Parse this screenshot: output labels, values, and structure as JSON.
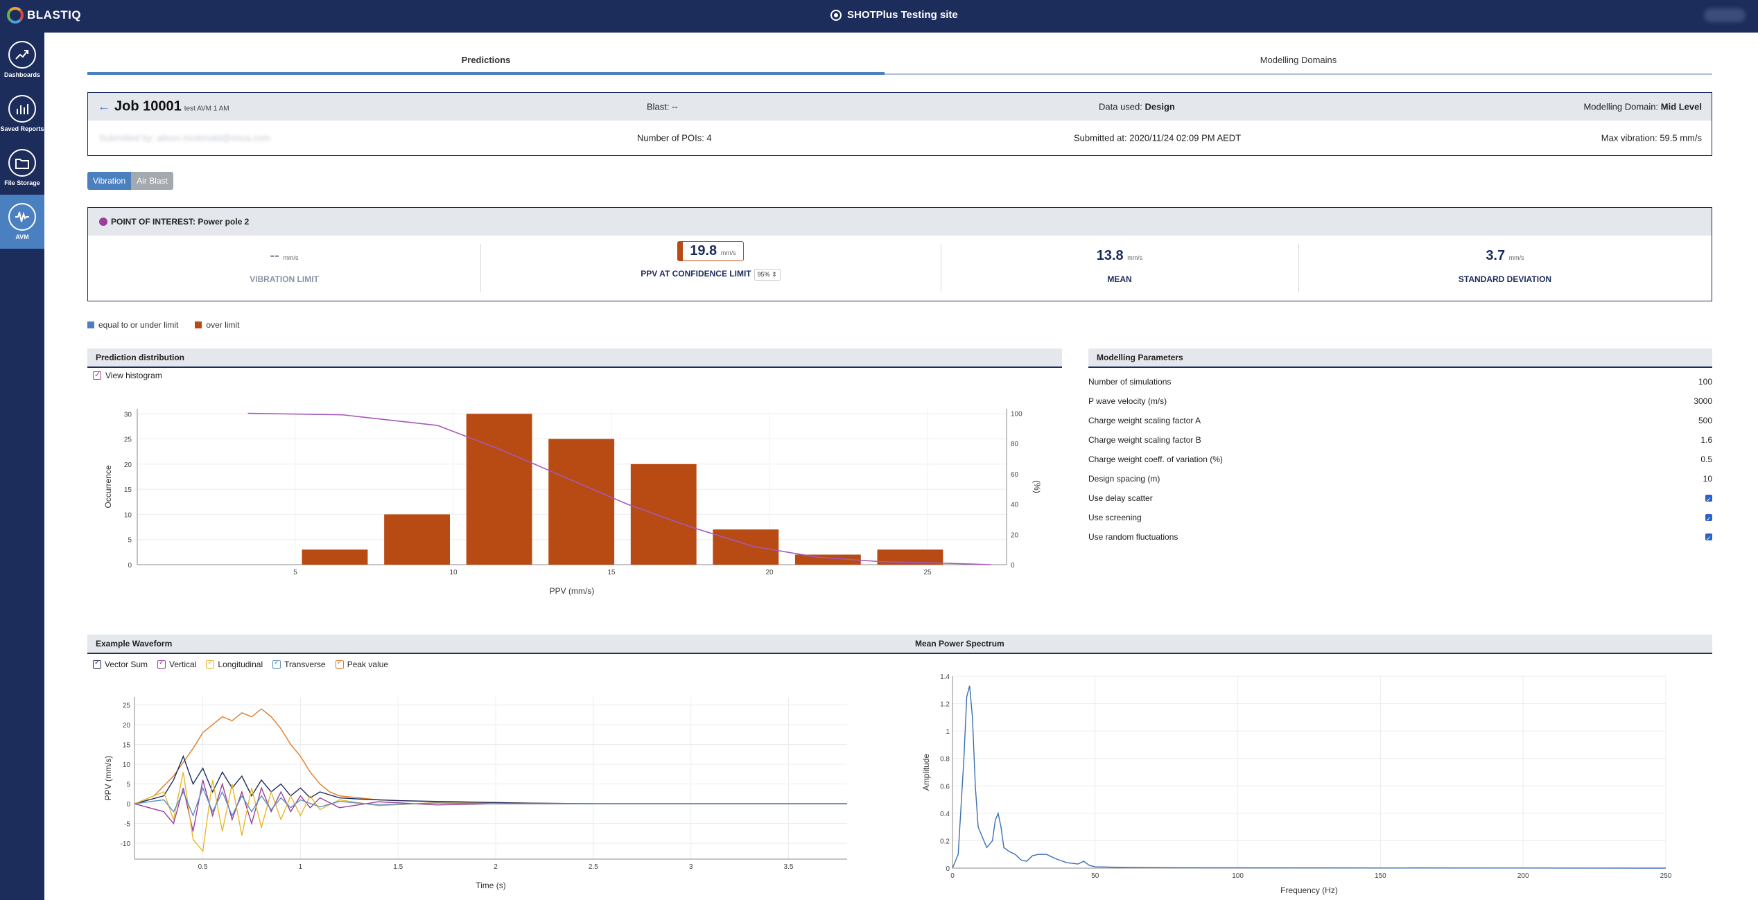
{
  "app": {
    "logo": "BLASTIQ",
    "site": "SHOTPlus Testing site"
  },
  "sidebar": {
    "items": [
      {
        "label": "Dashboards",
        "icon": "dashboards-icon"
      },
      {
        "label": "Saved Reports",
        "icon": "saved-reports-icon"
      },
      {
        "label": "File Storage",
        "icon": "file-storage-icon"
      },
      {
        "label": "AVM",
        "icon": "avm-icon",
        "active": true
      }
    ]
  },
  "tabs": [
    {
      "label": "Predictions",
      "active": true
    },
    {
      "label": "Modelling Domains",
      "active": false
    }
  ],
  "job": {
    "title": "Job 10001",
    "subtitle": "test AVM 1 AM",
    "blast": "Blast: --",
    "data_used_label": "Data used: ",
    "data_used_value": "Design",
    "domain_label": "Modelling Domain: ",
    "domain_value": "Mid Level",
    "submitted_by": "Submitted by: alison.mcdonald@orica.com",
    "pois": "Number of POIs: 4",
    "submitted_at": "Submitted at: 2020/11/24 02:09 PM AEDT",
    "max_vibration": "Max vibration: 59.5 mm/s"
  },
  "mode_toggle": {
    "vibration": "Vibration",
    "air_blast": "Air Blast"
  },
  "poi": {
    "title": "POINT OF INTEREST: Power pole 2",
    "dot_color": "#9b3d9b",
    "vibration_limit": {
      "value": "--",
      "unit": "mm/s",
      "label": "VIBRATION LIMIT"
    },
    "ppv": {
      "value": "19.8",
      "unit": "mm/s",
      "label": "PPV AT CONFIDENCE LIMIT",
      "confidence": "95%"
    },
    "mean": {
      "value": "13.8",
      "unit": "mm/s",
      "label": "MEAN"
    },
    "std": {
      "value": "3.7",
      "unit": "mm/s",
      "label": "STANDARD DEVIATION"
    }
  },
  "legend": {
    "under": "equal to or under limit",
    "over": "over limit",
    "under_color": "#4a7fc0",
    "over_color": "#b84a14"
  },
  "prediction_panel": {
    "title": "Prediction distribution",
    "view_histogram": "View histogram"
  },
  "modelling_panel": {
    "title": "Modelling Parameters",
    "rows": [
      {
        "label": "Number of simulations",
        "value": "100"
      },
      {
        "label": "P wave velocity (m/s)",
        "value": "3000"
      },
      {
        "label": "Charge weight scaling factor A",
        "value": "500"
      },
      {
        "label": "Charge weight scaling factor B",
        "value": "1.6"
      },
      {
        "label": "Charge weight coeff. of variation (%)",
        "value": "0.5"
      },
      {
        "label": "Design spacing (m)",
        "value": "10"
      },
      {
        "label": "Use delay scatter",
        "value": ""
      },
      {
        "label": "Use screening",
        "value": ""
      },
      {
        "label": "Use random fluctuations",
        "value": ""
      }
    ]
  },
  "waveform_panel": {
    "title": "Example Waveform",
    "series": [
      {
        "name": "Vector Sum",
        "color": "#1c2c5b"
      },
      {
        "name": "Vertical",
        "color": "#9b3d9b"
      },
      {
        "name": "Longitudinal",
        "color": "#e8b72c"
      },
      {
        "name": "Transverse",
        "color": "#5b8fc4"
      },
      {
        "name": "Peak value",
        "color": "#e07a28"
      }
    ]
  },
  "spectrum_panel": {
    "title": "Mean Power Spectrum"
  },
  "chart_data": [
    {
      "type": "bar",
      "title": "Prediction distribution",
      "xlabel": "PPV (mm/s)",
      "ylabel": "Occurrence",
      "y2label": "(%)",
      "xlim": [
        0,
        27.5
      ],
      "ylim": [
        0,
        31
      ],
      "y2lim": [
        0,
        103
      ],
      "xticks": [
        5,
        10,
        15,
        20,
        25
      ],
      "yticks": [
        0,
        5,
        10,
        15,
        20,
        25,
        30
      ],
      "y2ticks": [
        0,
        20,
        40,
        60,
        80,
        100
      ],
      "bar_width": 2.08,
      "bar_color": "#b84a14",
      "x": [
        6.25,
        8.85,
        11.45,
        14.05,
        16.65,
        19.25,
        21.85,
        24.45
      ],
      "values": [
        3,
        10,
        30,
        25,
        20,
        7,
        2,
        3
      ],
      "cumulative_line": {
        "color": "#a659b8",
        "x": [
          3.5,
          6.5,
          9.5,
          11.5,
          13.5,
          15.5,
          17.5,
          19.5,
          21.5,
          23.5,
          25.5,
          27.0
        ],
        "values": [
          100,
          99,
          92,
          76,
          58,
          40,
          25,
          12,
          5,
          2,
          1,
          0
        ]
      }
    },
    {
      "type": "line",
      "title": "Example Waveform",
      "xlabel": "Time (s)",
      "ylabel": "PPV (mm/s)",
      "xlim": [
        0.15,
        3.8
      ],
      "ylim": [
        -14,
        27
      ],
      "xticks": [
        0.5,
        1,
        1.5,
        2,
        2.5,
        3,
        3.5
      ],
      "yticks": [
        -10,
        -5,
        0,
        5,
        10,
        15,
        20,
        25
      ],
      "series": [
        {
          "name": "Peak value",
          "color": "#e07a28",
          "x": [
            0.15,
            0.25,
            0.35,
            0.45,
            0.5,
            0.55,
            0.6,
            0.65,
            0.7,
            0.75,
            0.8,
            0.85,
            0.9,
            0.95,
            1.0,
            1.05,
            1.1,
            1.15,
            1.2,
            1.3,
            1.4,
            1.5,
            1.7,
            2.0,
            2.3,
            2.6,
            3.8
          ],
          "values": [
            0,
            2,
            7,
            14,
            18,
            20,
            22,
            21,
            23,
            22,
            24,
            22,
            19,
            15,
            12,
            8,
            5,
            3,
            2,
            1.5,
            1,
            0.8,
            0.5,
            0.3,
            0.1,
            0,
            0
          ]
        },
        {
          "name": "Vector Sum",
          "color": "#1c2c5b",
          "x": [
            0.15,
            0.3,
            0.35,
            0.4,
            0.45,
            0.5,
            0.55,
            0.6,
            0.65,
            0.7,
            0.75,
            0.8,
            0.85,
            0.9,
            0.95,
            1.0,
            1.05,
            1.1,
            1.2,
            1.3,
            1.5,
            1.8,
            2.1,
            2.5,
            3.8
          ],
          "values": [
            0,
            2,
            6,
            12,
            5,
            9,
            3,
            8,
            4,
            7,
            2,
            6,
            3,
            5,
            2,
            4,
            1.5,
            3,
            1.5,
            1.2,
            0.8,
            0.5,
            0.2,
            0,
            0
          ]
        },
        {
          "name": "Vertical",
          "color": "#9b3d9b",
          "x": [
            0.15,
            0.3,
            0.35,
            0.4,
            0.45,
            0.5,
            0.55,
            0.6,
            0.65,
            0.7,
            0.75,
            0.8,
            0.85,
            0.9,
            0.95,
            1.0,
            1.05,
            1.1,
            1.2,
            1.4,
            1.7,
            2.0,
            3.8
          ],
          "values": [
            0,
            -2,
            -5,
            4,
            -7,
            6,
            -3,
            5,
            -4,
            3,
            -5,
            4,
            -2,
            3,
            -2,
            2,
            -1,
            1.5,
            -1,
            0.5,
            -0.3,
            0,
            0
          ]
        },
        {
          "name": "Longitudinal",
          "color": "#e8b72c",
          "x": [
            0.15,
            0.3,
            0.35,
            0.4,
            0.45,
            0.5,
            0.55,
            0.6,
            0.65,
            0.7,
            0.75,
            0.8,
            0.85,
            0.9,
            0.95,
            1.0,
            1.05,
            1.1,
            1.2,
            1.4,
            1.7,
            2.0,
            3.8
          ],
          "values": [
            0,
            3,
            -4,
            8,
            -9,
            -12,
            6,
            -7,
            5,
            -8,
            4,
            -6,
            3,
            -4,
            2,
            -3,
            2,
            -1.5,
            1,
            -0.5,
            0.3,
            0,
            0
          ]
        },
        {
          "name": "Transverse",
          "color": "#5b8fc4",
          "x": [
            0.15,
            0.3,
            0.35,
            0.4,
            0.45,
            0.5,
            0.55,
            0.6,
            0.65,
            0.7,
            0.75,
            0.8,
            0.85,
            0.9,
            0.95,
            1.0,
            1.1,
            1.2,
            1.4,
            1.7,
            2.0,
            3.8
          ],
          "values": [
            0,
            1,
            -2,
            3,
            -3,
            4,
            -2,
            3,
            -3,
            2,
            -2,
            2,
            -1.5,
            1.5,
            -1,
            1,
            -0.8,
            0.6,
            -0.3,
            0.2,
            0,
            0
          ]
        }
      ]
    },
    {
      "type": "line",
      "title": "Mean Power Spectrum",
      "xlabel": "Frequency (Hz)",
      "ylabel": "Amplitude",
      "xlim": [
        0,
        250
      ],
      "ylim": [
        0,
        1.4
      ],
      "xticks": [
        0,
        50,
        100,
        150,
        200,
        250
      ],
      "yticks": [
        0,
        0.2,
        0.4,
        0.6,
        0.8,
        1,
        1.2,
        1.4
      ],
      "ytick_labels": [
        "0",
        "0.2",
        "0.4",
        "0.6",
        "0.8",
        "1",
        "1.2",
        "1.4"
      ],
      "series": [
        {
          "name": "",
          "color": "#3a6fb0",
          "x": [
            0,
            2,
            4,
            5,
            6,
            7,
            8,
            9,
            10,
            12,
            14,
            15,
            16,
            17,
            18,
            20,
            22,
            24,
            26,
            28,
            30,
            33,
            36,
            40,
            44,
            46,
            48,
            50,
            60,
            80,
            100,
            250
          ],
          "values": [
            0,
            0.1,
            0.8,
            1.25,
            1.33,
            1.1,
            0.6,
            0.3,
            0.25,
            0.15,
            0.2,
            0.35,
            0.4,
            0.3,
            0.15,
            0.12,
            0.1,
            0.06,
            0.05,
            0.09,
            0.1,
            0.1,
            0.07,
            0.04,
            0.03,
            0.05,
            0.02,
            0.01,
            0.005,
            0.003,
            0.002,
            0
          ]
        }
      ]
    }
  ]
}
